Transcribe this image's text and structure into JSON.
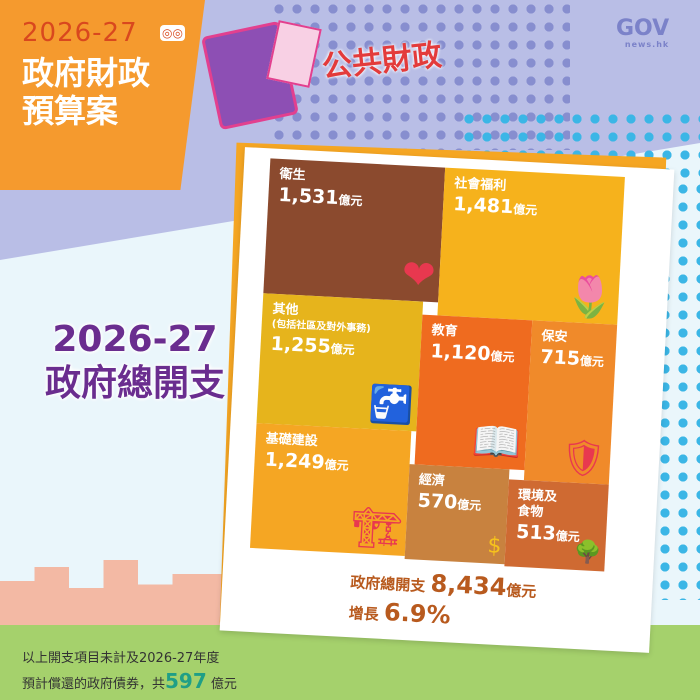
{
  "header": {
    "year": "2026-27",
    "title_line1": "政府財政",
    "title_line2": "預算案",
    "topic_tag": "公共財政",
    "logo_main": "GOV",
    "logo_sub": "news.hk"
  },
  "main_title": {
    "line1": "2026-27",
    "line2": "政府總開支"
  },
  "chart_data": {
    "type": "treemap",
    "unit": "億元",
    "categories": [
      "衛生",
      "社會福利",
      "其他",
      "教育",
      "保安",
      "基礎建設",
      "經濟",
      "環境及食物"
    ],
    "values": [
      1531,
      1481,
      1255,
      1120,
      715,
      1249,
      570,
      513
    ],
    "items": [
      {
        "name": "衛生",
        "value_label": "1,531",
        "value": 1531,
        "color": "#8b4a2e",
        "icon": "heart-icon"
      },
      {
        "name": "社會福利",
        "value_label": "1,481",
        "value": 1481,
        "color": "#f6b21c",
        "icon": "heart-flower-icon"
      },
      {
        "name": "其他",
        "note": "(包括社區及對外事務)",
        "value_label": "1,255",
        "value": 1255,
        "color": "#e6b41c",
        "icon": "faucet-coin-icon"
      },
      {
        "name": "教育",
        "value_label": "1,120",
        "value": 1120,
        "color": "#ef6b1f",
        "icon": "book-icon"
      },
      {
        "name": "保安",
        "value_label": "715",
        "value": 715,
        "color": "#f08a2a",
        "icon": "shield-icon"
      },
      {
        "name": "基礎建設",
        "value_label": "1,249",
        "value": 1249,
        "color": "#f5a623",
        "icon": "crane-icon"
      },
      {
        "name": "經濟",
        "value_label": "570",
        "value": 570,
        "color": "#c8823f",
        "icon": "coin-icon"
      },
      {
        "name": "環境及\n食物",
        "value_label": "513",
        "value": 513,
        "color": "#cf6a32",
        "icon": "tree-apple-icon"
      }
    ]
  },
  "total": {
    "label": "政府總開支",
    "value": "8,434",
    "unit": "億元",
    "growth_label": "增長",
    "growth": "6.9%"
  },
  "footnote": {
    "line1": "以上開支項目未計及2026-27年度",
    "line2_prefix": "預計償還的政府債券，共",
    "amount": "597",
    "unit": "億元"
  }
}
